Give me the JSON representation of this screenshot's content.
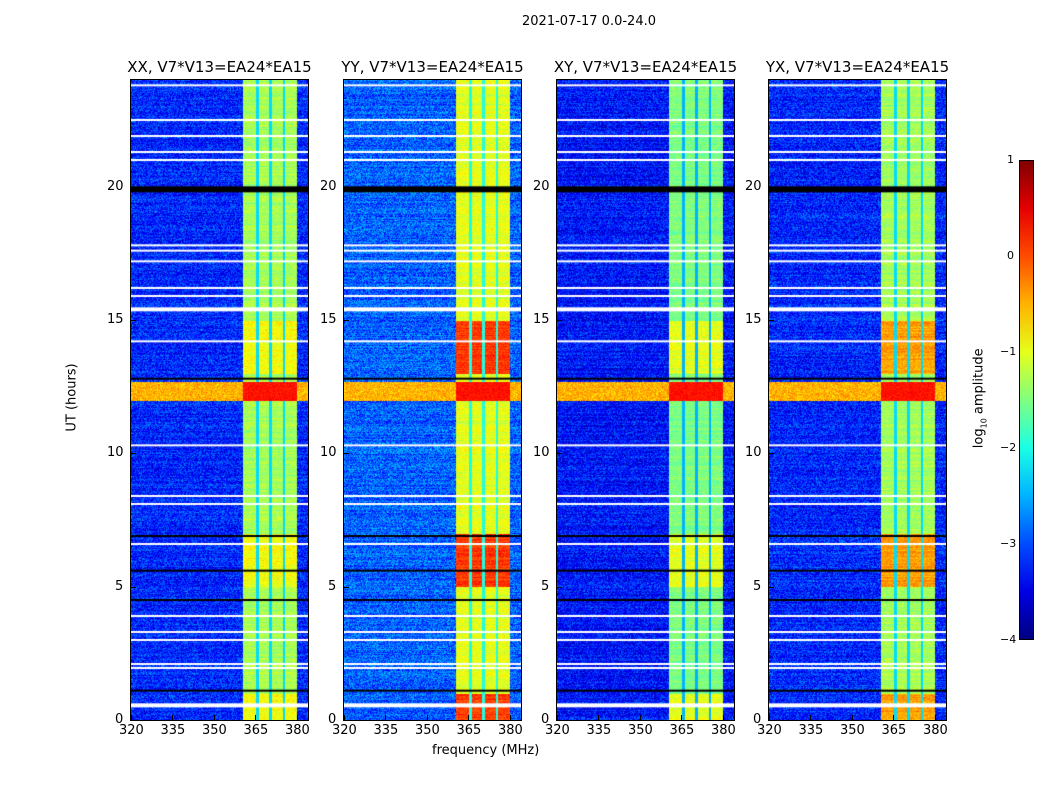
{
  "chart_data": {
    "type": "heatmap",
    "title": "2021-07-17 0.0-24.0",
    "xlabel": "frequency (MHz)",
    "ylabel": "UT (hours)",
    "xlim": [
      320,
      384
    ],
    "ylim": [
      0,
      24
    ],
    "xticks": [
      "320",
      "335",
      "350",
      "365",
      "380"
    ],
    "xtick_values": [
      320,
      335,
      350,
      365,
      380
    ],
    "yticks": [
      "0",
      "5",
      "10",
      "15",
      "20"
    ],
    "ytick_values": [
      0,
      5,
      10,
      15,
      20
    ],
    "colorbar": {
      "label_main": "log",
      "label_sub": "10",
      "label_rest": " amplitude",
      "range": [
        -4,
        1
      ],
      "ticks": [
        "1",
        "0",
        "−1",
        "−2",
        "−3",
        "−4"
      ],
      "tick_values": [
        1,
        0,
        -1,
        -2,
        -3,
        -4
      ],
      "colormap": "jet"
    },
    "band_MHz": [
      360.4,
      380
    ],
    "band_gaps_MHz": [
      365.5,
      370.2,
      375.1
    ],
    "flagged_hours_white": [
      23.8,
      22.5,
      21.9,
      21.3,
      21.0,
      17.8,
      17.6,
      17.2,
      16.2,
      15.9,
      15.4,
      14.2,
      10.3,
      8.4,
      8.1,
      6.6,
      3.9,
      3.3,
      3.0,
      2.1,
      1.95,
      0.55
    ],
    "dark_hours": [
      19.9,
      12.8,
      6.9,
      5.6,
      4.5,
      1.1
    ],
    "rfi_hours": [
      12.0,
      12.7
    ],
    "panels": [
      {
        "title": "XX, V7*V13=EA24*EA15",
        "background": -3.2,
        "band": -1.3,
        "band_high": -0.9
      },
      {
        "title": "YY, V7*V13=EA24*EA15",
        "background": -2.9,
        "band": -1.0,
        "band_high": 0.1
      },
      {
        "title": "XY, V7*V13=EA24*EA15",
        "background": -3.3,
        "band": -1.5,
        "band_high": -1.0
      },
      {
        "title": "YX, V7*V13=EA24*EA15",
        "background": -3.2,
        "band": -1.3,
        "band_high": -0.4
      }
    ]
  }
}
